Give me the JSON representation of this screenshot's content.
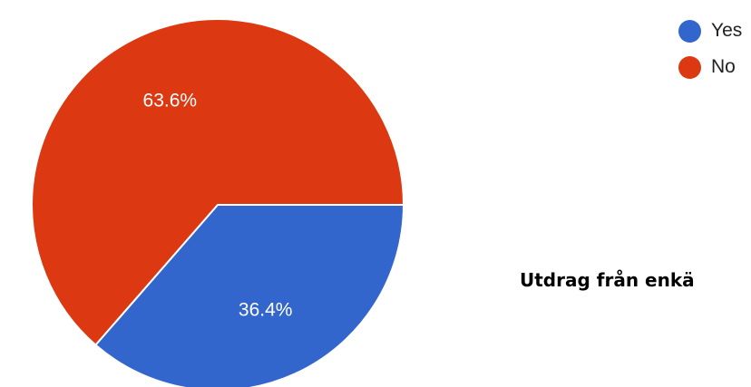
{
  "chart_data": {
    "type": "pie",
    "slices": [
      {
        "label": "Yes",
        "value": 36.4,
        "display": "36.4%",
        "color": "#3366cc"
      },
      {
        "label": "No",
        "value": 63.6,
        "display": "63.6%",
        "color": "#dc3912"
      }
    ],
    "legend_position": "top-right"
  },
  "caption": "Utdrag från enkä"
}
